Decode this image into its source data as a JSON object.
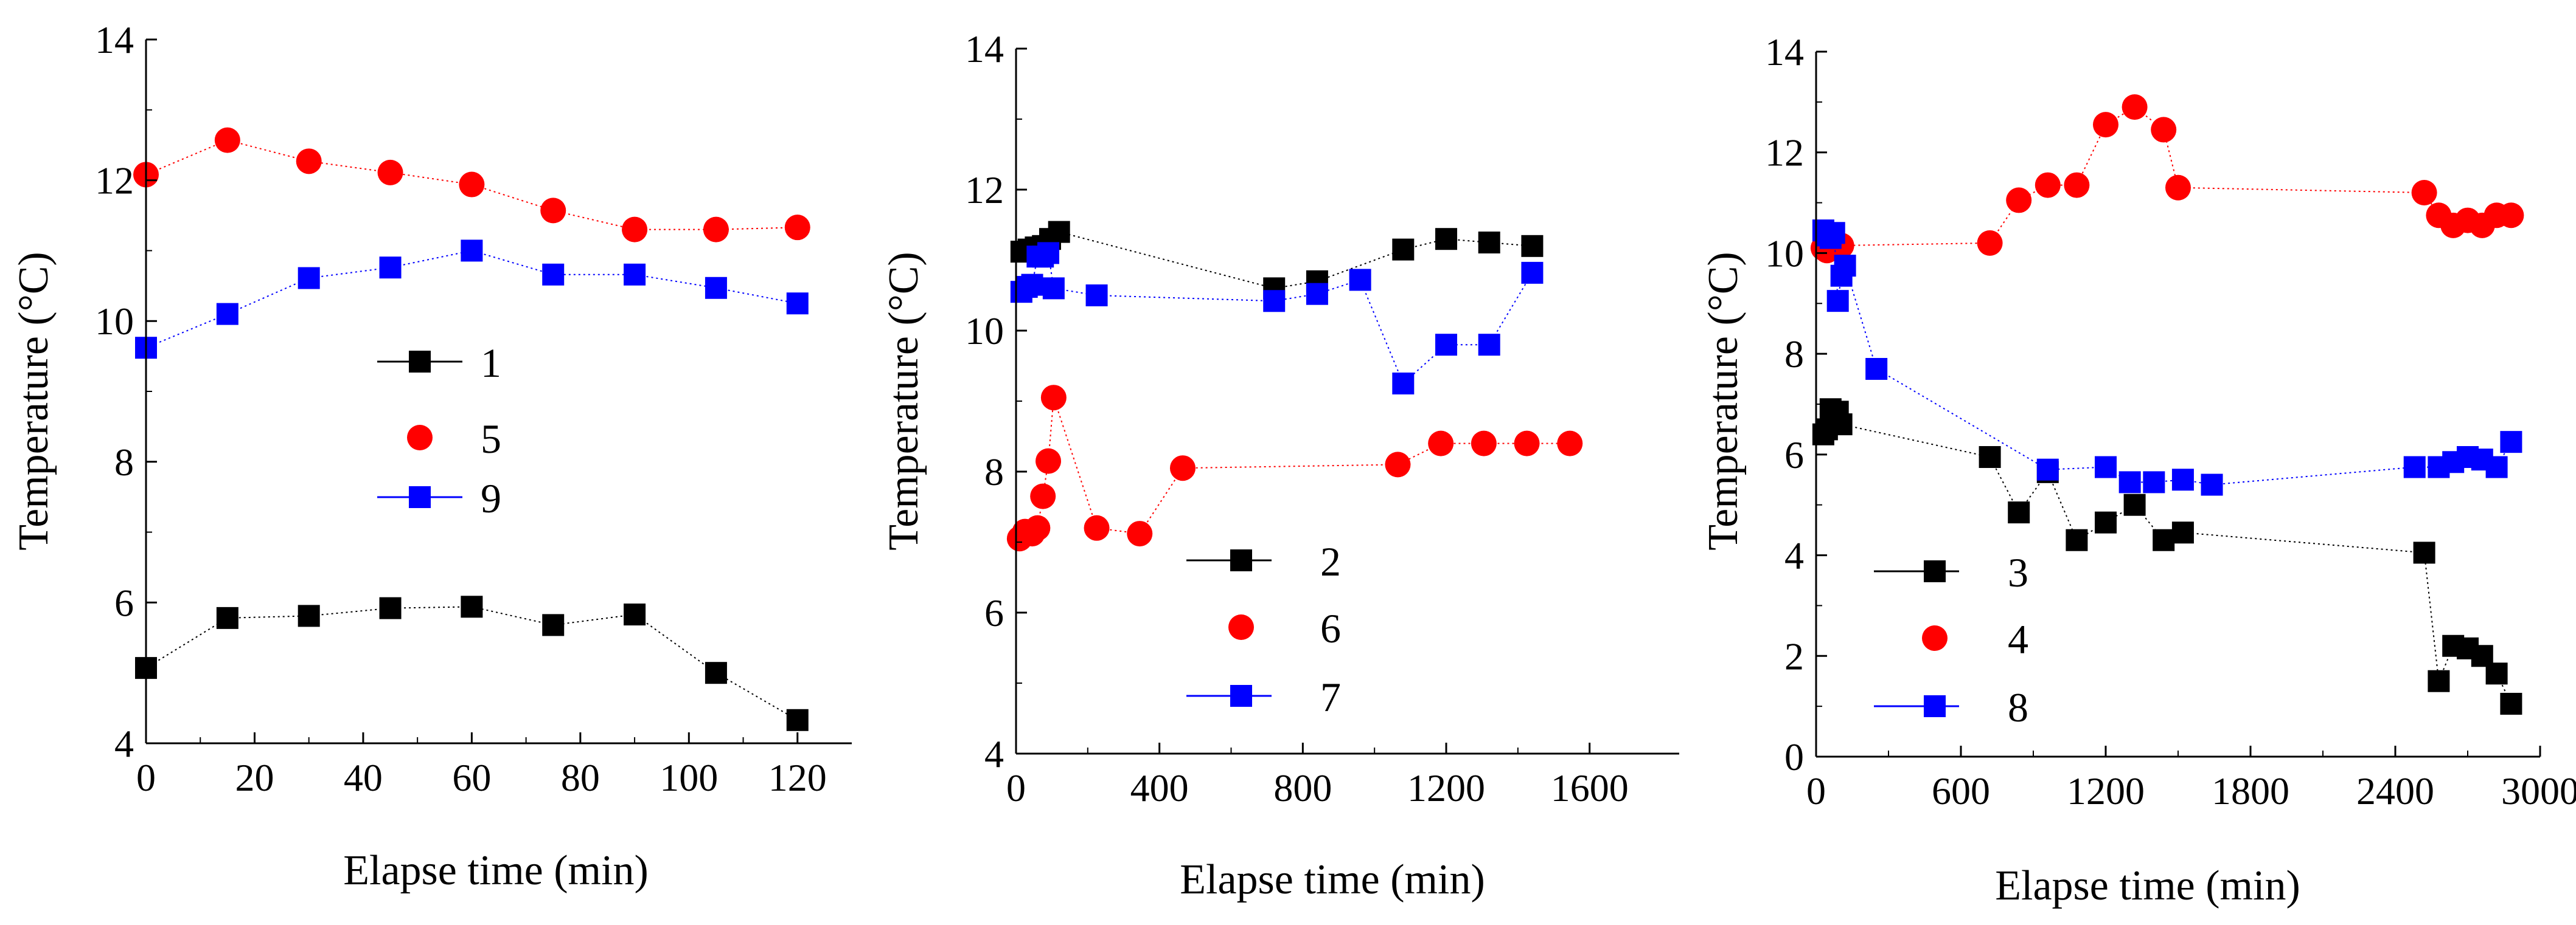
{
  "figure": {
    "background": "#ffffff"
  },
  "chart_data": [
    {
      "type": "line",
      "xlabel": "Elapse time (min)",
      "ylabel": "Temperature (°C)",
      "xlim": [
        0,
        130
      ],
      "ylim": [
        4,
        14
      ],
      "xticks": [
        "0",
        "20",
        "40",
        "60",
        "80",
        "100",
        "120"
      ],
      "yticks": [
        "4",
        "6",
        "8",
        "10",
        "12",
        "14"
      ],
      "series": [
        {
          "name": "1",
          "marker": "square",
          "color": "#000000",
          "points": [
            [
              0,
              5.07
            ],
            [
              15,
              5.78
            ],
            [
              30,
              5.81
            ],
            [
              45,
              5.92
            ],
            [
              60,
              5.94
            ],
            [
              75,
              5.68
            ],
            [
              90,
              5.83
            ],
            [
              105,
              5.0
            ],
            [
              120,
              4.33
            ]
          ]
        },
        {
          "name": "5",
          "marker": "circle",
          "color": "#ff0000",
          "points": [
            [
              0,
              12.08
            ],
            [
              15,
              12.57
            ],
            [
              30,
              12.27
            ],
            [
              45,
              12.11
            ],
            [
              60,
              11.94
            ],
            [
              75,
              11.57
            ],
            [
              90,
              11.3
            ],
            [
              105,
              11.3
            ],
            [
              120,
              11.33
            ]
          ]
        },
        {
          "name": "9",
          "marker": "square",
          "color": "#0000ff",
          "points": [
            [
              0,
              9.62
            ],
            [
              15,
              10.1
            ],
            [
              30,
              10.61
            ],
            [
              45,
              10.76
            ],
            [
              60,
              11.0
            ],
            [
              75,
              10.66
            ],
            [
              90,
              10.66
            ],
            [
              105,
              10.47
            ],
            [
              120,
              10.25
            ]
          ]
        }
      ]
    },
    {
      "type": "line",
      "xlabel": "Elapse time (min)",
      "ylabel": "Temperature (°C)",
      "xlim": [
        0,
        1850
      ],
      "ylim": [
        4,
        14
      ],
      "xticks": [
        "0",
        "400",
        "800",
        "1200",
        "1600"
      ],
      "yticks": [
        "4",
        "6",
        "8",
        "10",
        "12",
        "14"
      ],
      "series": [
        {
          "name": "2",
          "marker": "square",
          "color": "#000000",
          "points": [
            [
              15,
              11.12
            ],
            [
              35,
              11.15
            ],
            [
              55,
              11.18
            ],
            [
              75,
              11.2
            ],
            [
              95,
              11.3
            ],
            [
              120,
              11.4
            ],
            [
              720,
              10.6
            ],
            [
              840,
              10.7
            ],
            [
              1080,
              11.15
            ],
            [
              1200,
              11.3
            ],
            [
              1320,
              11.25
            ],
            [
              1440,
              11.2
            ]
          ]
        },
        {
          "name": "6",
          "marker": "circle",
          "color": "#ff0000",
          "points": [
            [
              10,
              7.05
            ],
            [
              25,
              7.15
            ],
            [
              45,
              7.12
            ],
            [
              60,
              7.2
            ],
            [
              75,
              7.65
            ],
            [
              90,
              8.15
            ],
            [
              105,
              9.05
            ],
            [
              225,
              7.2
            ],
            [
              345,
              7.12
            ],
            [
              465,
              8.05
            ],
            [
              1065,
              8.1
            ],
            [
              1185,
              8.4
            ],
            [
              1305,
              8.4
            ],
            [
              1425,
              8.4
            ],
            [
              1545,
              8.4
            ]
          ]
        },
        {
          "name": "7",
          "marker": "square",
          "color": "#0000ff",
          "points": [
            [
              15,
              10.55
            ],
            [
              30,
              10.62
            ],
            [
              45,
              10.65
            ],
            [
              60,
              11.05
            ],
            [
              75,
              11.05
            ],
            [
              90,
              11.1
            ],
            [
              105,
              10.6
            ],
            [
              225,
              10.5
            ],
            [
              720,
              10.42
            ],
            [
              840,
              10.52
            ],
            [
              960,
              10.72
            ],
            [
              1080,
              9.25
            ],
            [
              1200,
              9.8
            ],
            [
              1320,
              9.8
            ],
            [
              1440,
              10.82
            ]
          ]
        }
      ]
    },
    {
      "type": "line",
      "xlabel": "Elapse time (min)",
      "ylabel": "Temperature (°C)",
      "xlim": [
        0,
        3000
      ],
      "ylim": [
        0,
        14
      ],
      "xticks": [
        "0",
        "600",
        "1200",
        "1800",
        "2400",
        "3000"
      ],
      "yticks": [
        "0",
        "2",
        "4",
        "6",
        "8",
        "10",
        "12",
        "14"
      ],
      "series": [
        {
          "name": "3",
          "marker": "square",
          "color": "#000000",
          "points": [
            [
              30,
              6.4
            ],
            [
              45,
              6.5
            ],
            [
              60,
              6.9
            ],
            [
              75,
              6.7
            ],
            [
              90,
              6.85
            ],
            [
              105,
              6.6
            ],
            [
              720,
              5.95
            ],
            [
              840,
              4.85
            ],
            [
              960,
              5.65
            ],
            [
              1080,
              4.3
            ],
            [
              1200,
              4.65
            ],
            [
              1320,
              5.0
            ],
            [
              1440,
              4.3
            ],
            [
              1520,
              4.45
            ],
            [
              2520,
              4.05
            ],
            [
              2580,
              1.5
            ],
            [
              2640,
              2.2
            ],
            [
              2700,
              2.15
            ],
            [
              2760,
              2.0
            ],
            [
              2820,
              1.65
            ],
            [
              2880,
              1.05
            ]
          ]
        },
        {
          "name": "4",
          "marker": "circle",
          "color": "#ff0000",
          "points": [
            [
              30,
              10.1
            ],
            [
              45,
              10.05
            ],
            [
              60,
              10.1
            ],
            [
              75,
              10.15
            ],
            [
              90,
              10.1
            ],
            [
              105,
              10.15
            ],
            [
              720,
              10.2
            ],
            [
              840,
              11.05
            ],
            [
              960,
              11.35
            ],
            [
              1080,
              11.35
            ],
            [
              1200,
              12.55
            ],
            [
              1320,
              12.9
            ],
            [
              1440,
              12.45
            ],
            [
              1500,
              11.3
            ],
            [
              2520,
              11.2
            ],
            [
              2580,
              10.75
            ],
            [
              2640,
              10.55
            ],
            [
              2700,
              10.65
            ],
            [
              2760,
              10.55
            ],
            [
              2820,
              10.75
            ],
            [
              2880,
              10.75
            ]
          ]
        },
        {
          "name": "8",
          "marker": "square",
          "color": "#0000ff",
          "points": [
            [
              30,
              10.45
            ],
            [
              45,
              10.35
            ],
            [
              60,
              10.3
            ],
            [
              75,
              10.4
            ],
            [
              90,
              9.05
            ],
            [
              105,
              9.55
            ],
            [
              120,
              9.75
            ],
            [
              250,
              7.7
            ],
            [
              960,
              5.7
            ],
            [
              1200,
              5.75
            ],
            [
              1300,
              5.45
            ],
            [
              1400,
              5.45
            ],
            [
              1520,
              5.5
            ],
            [
              1640,
              5.4
            ],
            [
              2480,
              5.75
            ],
            [
              2580,
              5.75
            ],
            [
              2640,
              5.85
            ],
            [
              2700,
              5.95
            ],
            [
              2760,
              5.9
            ],
            [
              2820,
              5.75
            ],
            [
              2880,
              6.25
            ]
          ]
        }
      ]
    }
  ]
}
